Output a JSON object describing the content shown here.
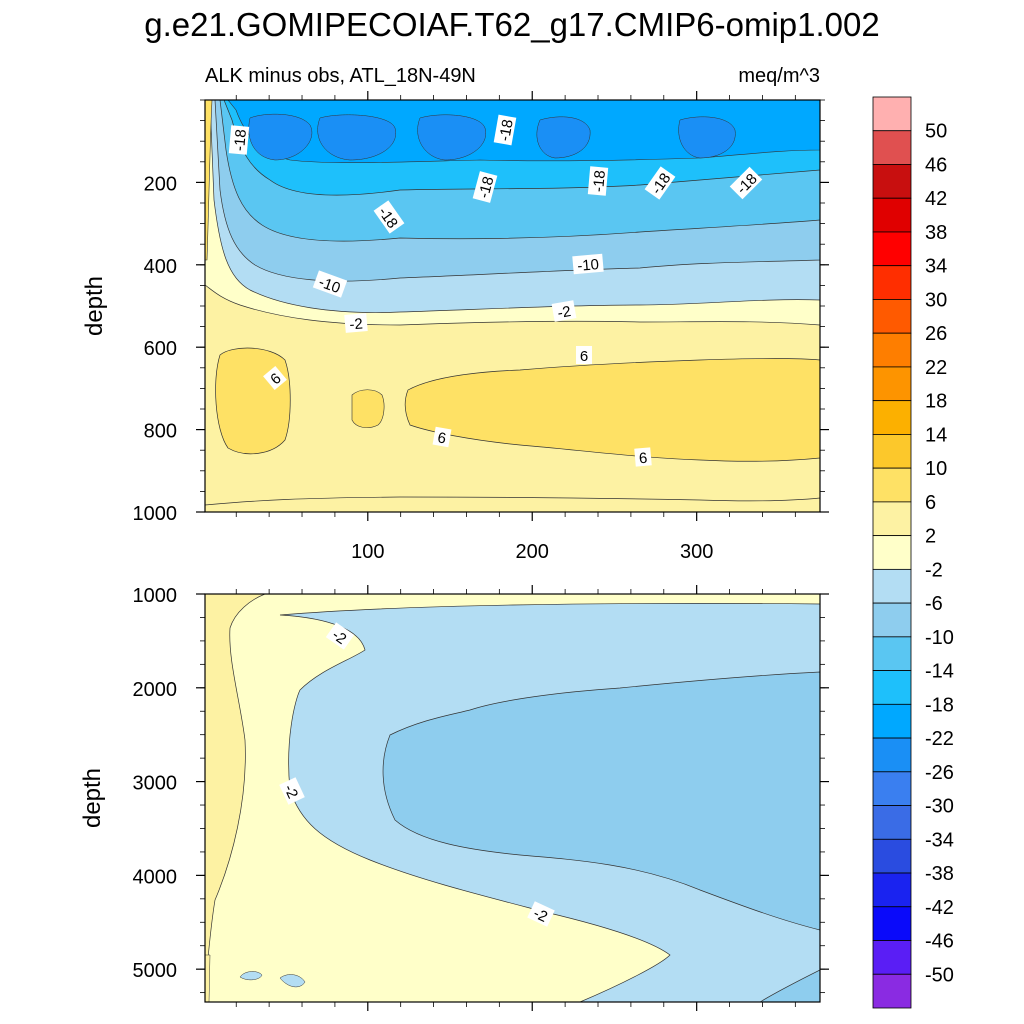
{
  "title": "g.e21.GOMIPECOIAF.T62_g17.CMIP6-omip1.002",
  "colors": {
    "levels": [
      "#8a2be2",
      "#5a1ef5",
      "#0a0afa",
      "#1a23f0",
      "#2a4ce0",
      "#3a6ce6",
      "#3a7ff0",
      "#1a8ff5",
      "#00a8ff",
      "#1ec0fb",
      "#5ac6f2",
      "#8ecdee",
      "#b3ddf3",
      "#ffffc9",
      "#fdf2a3",
      "#fee165",
      "#fcc82b",
      "#fcb000",
      "#fd9400",
      "#fe7e00",
      "#ff5a00",
      "#ff2e00",
      "#ff0000",
      "#e00000",
      "#c80f0f",
      "#e05050",
      "#ffb0b0"
    ]
  },
  "chart_data": [
    {
      "type": "heatmap",
      "panel": "upper",
      "left_title": "ALK minus obs, ATL_18N-49N",
      "right_title": "meq/m^3",
      "ylabel": "depth",
      "xlim": [
        1,
        375
      ],
      "ylim": [
        1000,
        0
      ],
      "x_ticks": [
        100,
        200,
        300
      ],
      "y_ticks": [
        200,
        400,
        600,
        800,
        1000
      ],
      "contour_labels": [
        "-18",
        "-18",
        "-18",
        "-18",
        "-18",
        "-18",
        "-18",
        "-10",
        "-10",
        "-2",
        "-2",
        "6",
        "6",
        "6",
        "6"
      ]
    },
    {
      "type": "heatmap",
      "panel": "lower",
      "ylabel": "depth",
      "xlim": [
        1,
        375
      ],
      "ylim": [
        5350,
        1000
      ],
      "x_ticks": [
        100,
        200,
        300
      ],
      "y_ticks": [
        1000,
        2000,
        3000,
        4000,
        5000
      ],
      "contour_labels": [
        "-2",
        "-2",
        "-2"
      ]
    },
    {
      "type": "colorbar",
      "levels": [
        50,
        46,
        42,
        38,
        34,
        30,
        26,
        22,
        18,
        14,
        10,
        6,
        2,
        -2,
        -6,
        -10,
        -14,
        -18,
        -22,
        -26,
        -30,
        -34,
        -38,
        -42,
        -46,
        -50
      ]
    }
  ]
}
